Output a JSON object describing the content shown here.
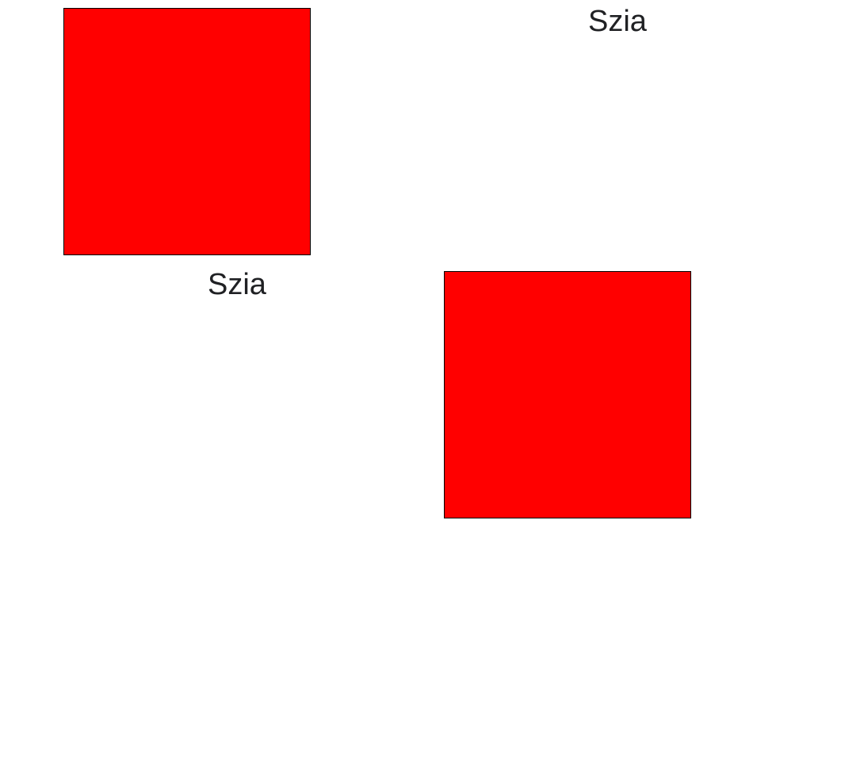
{
  "blocks": [
    {
      "label": "Szia",
      "box_color": "#ff0000"
    },
    {
      "label": "Szia",
      "box_color": "#ff0000"
    }
  ],
  "colors": {
    "text": "#202124",
    "border": "#000000",
    "background": "#ffffff"
  }
}
